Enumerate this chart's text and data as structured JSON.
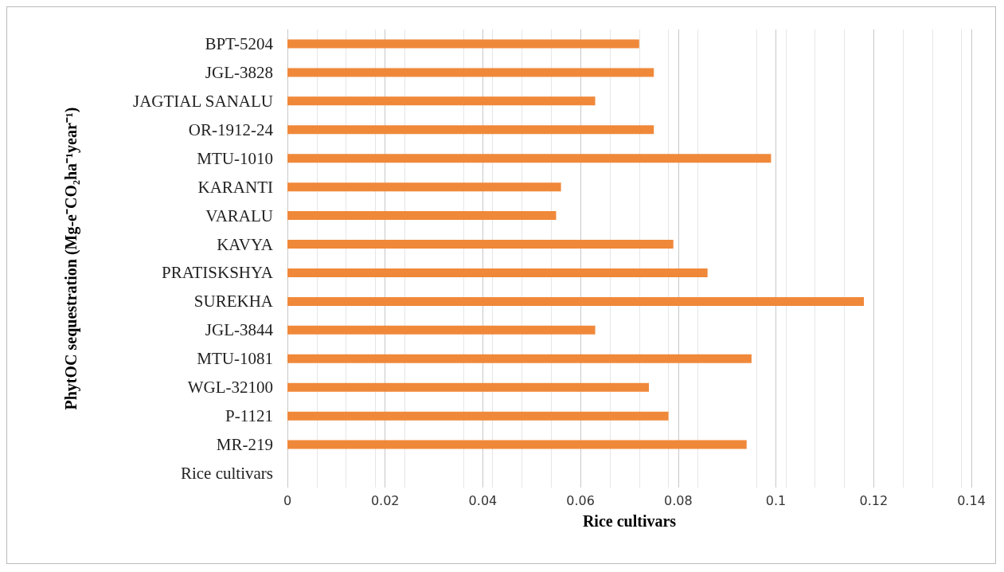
{
  "chart_data": {
    "type": "bar",
    "orientation": "horizontal",
    "xlabel": "Rice cultivars",
    "ylabel": "PhytOC sequestration (Mg-e⁻CO₂ha⁻¹year⁻¹)",
    "categories": [
      "BPT-5204",
      "JGL-3828",
      "JAGTIAL SANALU",
      "OR-1912-24",
      "MTU-1010",
      "KARANTI",
      "VARALU",
      "KAVYA",
      "PRATISKSHYA",
      "SUREKHA",
      "JGL-3844",
      "MTU-1081",
      "WGL-32100",
      "P-1121",
      "MR-219",
      "Rice cultivars"
    ],
    "values": [
      0.072,
      0.075,
      0.063,
      0.075,
      0.099,
      0.056,
      0.055,
      0.079,
      0.086,
      0.118,
      0.063,
      0.095,
      0.074,
      0.078,
      0.094,
      null
    ],
    "color": "#f0883a",
    "xlim": [
      0,
      0.14
    ],
    "xticks": [
      0,
      0.02,
      0.04,
      0.06,
      0.08,
      0.1,
      0.12,
      0.14
    ],
    "grid": "x"
  }
}
